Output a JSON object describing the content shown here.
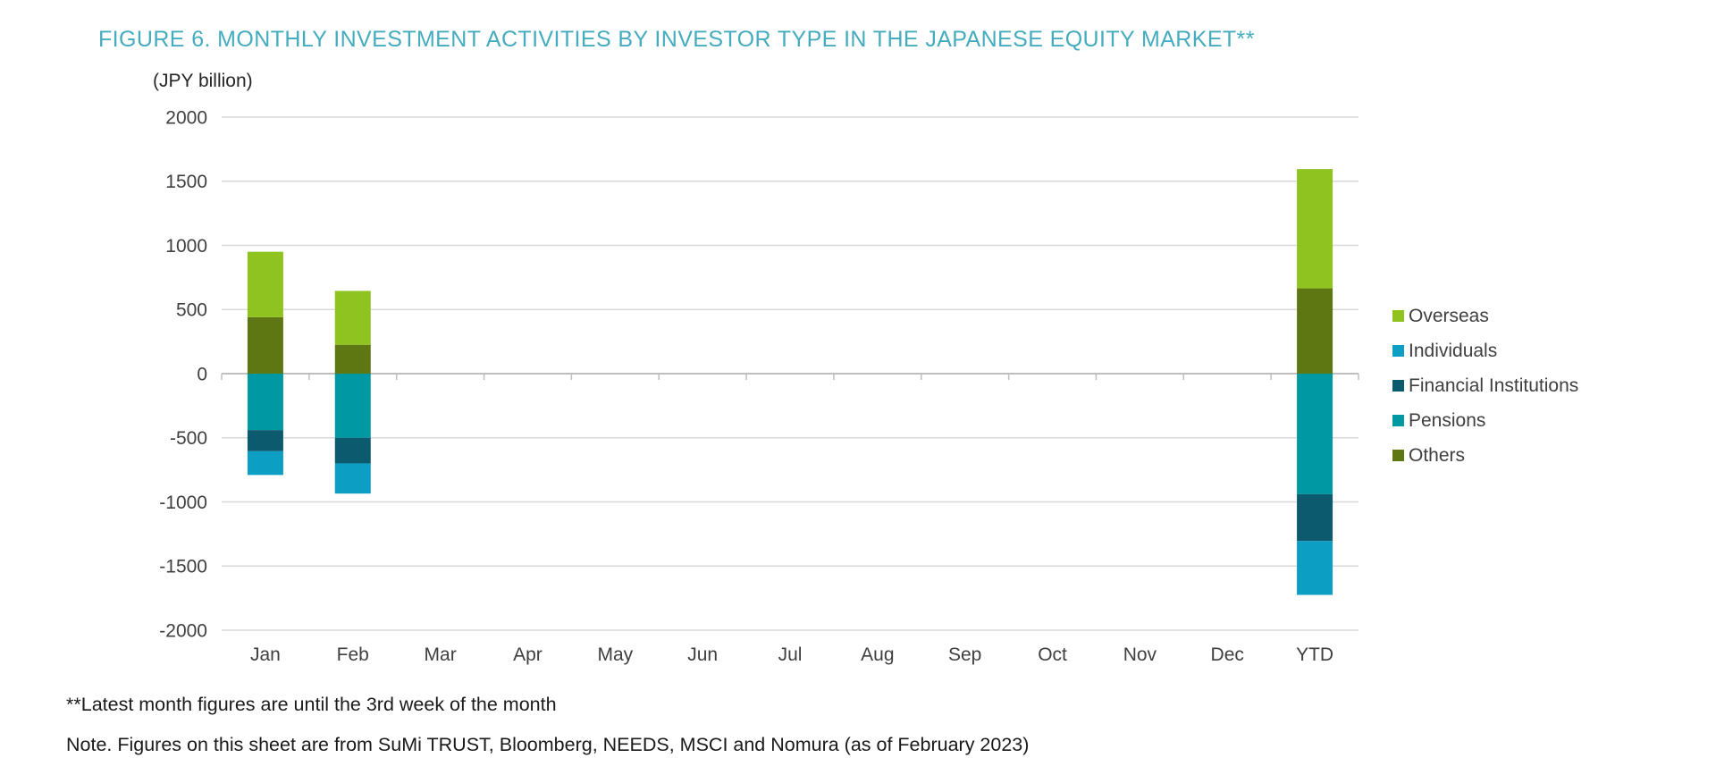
{
  "figure": {
    "title": "FIGURE 6. MONTHLY INVESTMENT ACTIVITIES BY INVESTOR TYPE IN THE JAPANESE EQUITY MARKET**",
    "title_color": "#45acbf",
    "unit_label": "(JPY billion)",
    "footnotes": [
      "**Latest month figures are until the 3rd week of the month",
      "Note. Figures on this sheet are from SuMi TRUST, Bloomberg, NEEDS, MSCI and Nomura (as of February 2023)"
    ]
  },
  "chart_data": {
    "type": "bar",
    "stacked": true,
    "title": "FIGURE 6. MONTHLY INVESTMENT ACTIVITIES BY INVESTOR TYPE IN THE JAPANESE EQUITY MARKET**",
    "unit_label": "(JPY billion)",
    "xlabel": "",
    "ylabel": "JPY billion",
    "categories": [
      "Jan",
      "Feb",
      "Mar",
      "Apr",
      "May",
      "Jun",
      "Jul",
      "Aug",
      "Sep",
      "Oct",
      "Nov",
      "Dec",
      "YTD"
    ],
    "series": [
      {
        "name": "Overseas",
        "color": "#8fc31f",
        "values": [
          510,
          420,
          null,
          null,
          null,
          null,
          null,
          null,
          null,
          null,
          null,
          null,
          930
        ]
      },
      {
        "name": "Individuals",
        "color": "#0d9ec4",
        "values": [
          -185,
          -235,
          null,
          null,
          null,
          null,
          null,
          null,
          null,
          null,
          null,
          null,
          -420
        ]
      },
      {
        "name": "Financial Institutions",
        "color": "#0b5a6e",
        "values": [
          -165,
          -200,
          null,
          null,
          null,
          null,
          null,
          null,
          null,
          null,
          null,
          null,
          -365
        ]
      },
      {
        "name": "Pensions",
        "color": "#0098a2",
        "values": [
          -440,
          -500,
          null,
          null,
          null,
          null,
          null,
          null,
          null,
          null,
          null,
          null,
          -940
        ]
      },
      {
        "name": "Others",
        "color": "#5f7712",
        "values": [
          440,
          225,
          null,
          null,
          null,
          null,
          null,
          null,
          null,
          null,
          null,
          null,
          665
        ]
      }
    ],
    "stack_order": [
      "Others",
      "Overseas",
      "Pensions",
      "Financial Institutions",
      "Individuals"
    ],
    "ylim": [
      -2000,
      2000
    ],
    "yticks": [
      2000,
      1500,
      1000,
      500,
      0,
      -500,
      -1000,
      -1500,
      -2000
    ],
    "grid": true,
    "legend_position": "right",
    "gridline_color": "#d9d9d9",
    "zeroline_color": "#bfbfbf",
    "axis_label_color": "#3f3f3f"
  }
}
